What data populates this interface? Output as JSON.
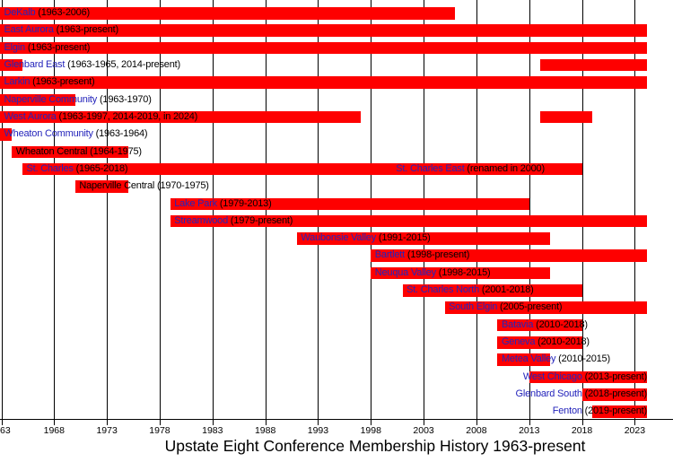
{
  "title": "Upstate Eight Conference Membership History 1963-present",
  "colors": {
    "bar": "#fe0000",
    "link_text": "#2424bb",
    "plain_text": "#000000",
    "grid": "#000000"
  },
  "chart_data": {
    "type": "gantt-timeline",
    "title": "Upstate Eight Conference Membership History 1963-present",
    "x_axis": {
      "start_year": 1963,
      "present_end_label": "present",
      "ticks": [
        {
          "year": 1963,
          "label": "63",
          "align": "left"
        },
        {
          "year": 1968,
          "label": "1968"
        },
        {
          "year": 1973,
          "label": "1973"
        },
        {
          "year": 1978,
          "label": "1978"
        },
        {
          "year": 1983,
          "label": "1983"
        },
        {
          "year": 1988,
          "label": "1988"
        },
        {
          "year": 1993,
          "label": "1993"
        },
        {
          "year": 1998,
          "label": "1998"
        },
        {
          "year": 2003,
          "label": "2003"
        },
        {
          "year": 2008,
          "label": "2008"
        },
        {
          "year": 2013,
          "label": "2013"
        },
        {
          "year": 2018,
          "label": "2018"
        },
        {
          "year": 2023,
          "label": "2023"
        }
      ]
    },
    "rows": [
      {
        "name": "DeKalb",
        "is_link": true,
        "years_text": "(1963-2006)",
        "segments": [
          {
            "from": 1963,
            "to": 2006
          }
        ]
      },
      {
        "name": "East Aurora",
        "is_link": true,
        "years_text": "(1963-present)",
        "segments": [
          {
            "from": 1963,
            "to": "present"
          }
        ]
      },
      {
        "name": "Elgin",
        "is_link": true,
        "years_text": "(1963-present)",
        "segments": [
          {
            "from": 1963,
            "to": "present"
          }
        ]
      },
      {
        "name": "Glenbard East",
        "is_link": true,
        "years_text": "(1963-1965, 2014-present)",
        "segments": [
          {
            "from": 1963,
            "to": 1965
          },
          {
            "from": 2014,
            "to": "present"
          }
        ]
      },
      {
        "name": "Larkin",
        "is_link": true,
        "years_text": "(1963-present)",
        "segments": [
          {
            "from": 1963,
            "to": "present"
          }
        ]
      },
      {
        "name": "Naperville Community",
        "is_link": true,
        "years_text": "(1963-1970)",
        "segments": [
          {
            "from": 1963,
            "to": 1970
          }
        ]
      },
      {
        "name": "West Aurora",
        "is_link": true,
        "years_text": "(1963-1997, 2014-2019, in 2024)",
        "segments": [
          {
            "from": 1963,
            "to": 1997
          },
          {
            "from": 2014,
            "to": 2019
          }
        ]
      },
      {
        "name": "Wheaton Community",
        "is_link": true,
        "years_text": "(1963-1964)",
        "segments": [
          {
            "from": 1963,
            "to": 1964
          }
        ]
      },
      {
        "name": "Wheaton Central",
        "is_link": false,
        "years_text": "(1964-1975)",
        "segments": [
          {
            "from": 1964,
            "to": 1975
          }
        ]
      },
      {
        "name": "St. Charles",
        "is_link": true,
        "years_text": "(1965-2018)",
        "segments": [
          {
            "from": 1965,
            "to": 2018
          }
        ],
        "extra_label": {
          "name": "St. Charles East",
          "is_link": true,
          "years_text": "(renamed in 2000)",
          "anchor_year": 2000
        }
      },
      {
        "name": "Naperville Central",
        "is_link": false,
        "years_text": "(1970-1975)",
        "segments": [
          {
            "from": 1970,
            "to": 1975
          }
        ]
      },
      {
        "name": "Lake Park",
        "is_link": true,
        "years_text": "(1979-2013)",
        "segments": [
          {
            "from": 1979,
            "to": 2013
          }
        ]
      },
      {
        "name": "Streamwood",
        "is_link": true,
        "years_text": "(1979-present)",
        "segments": [
          {
            "from": 1979,
            "to": "present"
          }
        ]
      },
      {
        "name": "Waubonsie Valley",
        "is_link": true,
        "years_text": "(1991-2015)",
        "segments": [
          {
            "from": 1991,
            "to": 2015
          }
        ]
      },
      {
        "name": "Bartlett",
        "is_link": true,
        "years_text": "(1998-present)",
        "segments": [
          {
            "from": 1998,
            "to": "present"
          }
        ]
      },
      {
        "name": "Neuqua Valley",
        "is_link": true,
        "years_text": "(1998-2015)",
        "segments": [
          {
            "from": 1998,
            "to": 2015
          }
        ]
      },
      {
        "name": "St. Charles North",
        "is_link": true,
        "years_text": "(2001-2018)",
        "segments": [
          {
            "from": 2001,
            "to": 2018
          }
        ]
      },
      {
        "name": "South Elgin",
        "is_link": true,
        "years_text": "(2005-present)",
        "segments": [
          {
            "from": 2005,
            "to": "present"
          }
        ]
      },
      {
        "name": "Batavia",
        "is_link": true,
        "years_text": "(2010-2018)",
        "segments": [
          {
            "from": 2010,
            "to": 2018
          }
        ]
      },
      {
        "name": "Geneva",
        "is_link": true,
        "years_text": "(2010-2018)",
        "segments": [
          {
            "from": 2010,
            "to": 2018
          }
        ]
      },
      {
        "name": "Metea Valley",
        "is_link": true,
        "years_text": "(2010-2015)",
        "segments": [
          {
            "from": 2010,
            "to": 2015
          }
        ]
      },
      {
        "name": "West Chicago",
        "is_link": true,
        "years_text": "(2013-present)",
        "segments": [
          {
            "from": 2013,
            "to": "present"
          }
        ],
        "label_align": "right"
      },
      {
        "name": "Glenbard South",
        "is_link": true,
        "years_text": "(2018-present)",
        "segments": [
          {
            "from": 2018,
            "to": "present"
          }
        ],
        "label_align": "right"
      },
      {
        "name": "Fenton",
        "is_link": true,
        "years_text": "(2019-present)",
        "segments": [
          {
            "from": 2019,
            "to": "present"
          }
        ],
        "label_align": "right"
      }
    ]
  }
}
